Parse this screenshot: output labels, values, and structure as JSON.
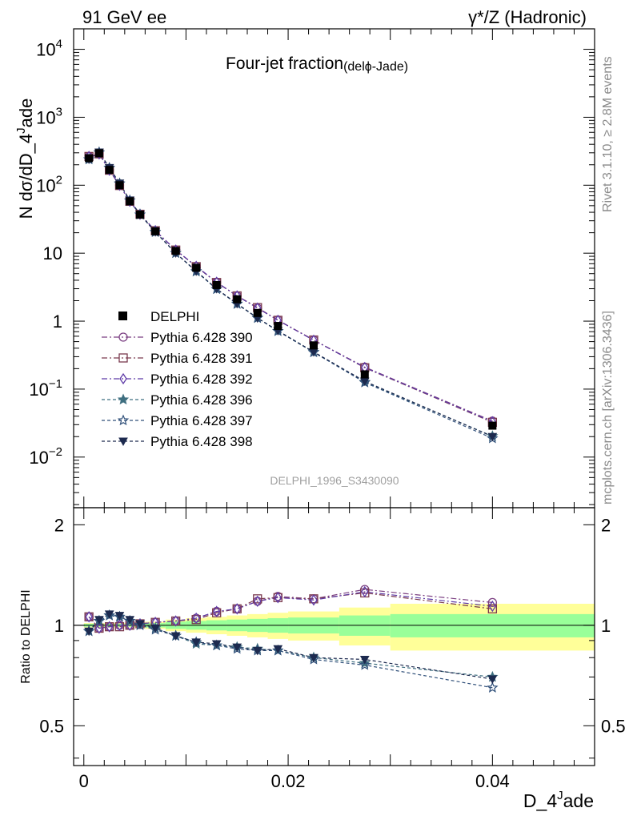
{
  "header": {
    "left": "91 GeV ee",
    "right": "γ*/Z (Hadronic)"
  },
  "side": {
    "rivet": "Rivet 3.1.10, ≥ 2.8M events",
    "mcplots": "mcplots.cern.ch [arXiv:1306.3436]"
  },
  "chart_data": {
    "type": "line",
    "title_main": "Four-jet fraction",
    "title_sub": "(del",
    "title_phi": "ϕ",
    "title_end": "-Jade)",
    "watermark": "DELPHI_1996_S3430090",
    "ylabel_main": "N dσ/dD_4",
    "ylabel_sup": "J",
    "ylabel_end": "ade",
    "ratio_ylabel": "Ratio to DELPHI",
    "xlabel_main": "D_4",
    "xlabel_sup": "J",
    "xlabel_end": "ade",
    "x_range": [
      -0.001,
      0.05
    ],
    "y_log_range": [
      0.0018,
      20000
    ],
    "ratio_range": [
      0.38,
      2.25
    ],
    "x_ticks": [
      0,
      0.02,
      0.04
    ],
    "x_tick_labels": [
      "0",
      "0.02",
      "0.04"
    ],
    "y_ticks": [
      {
        "v": 10000,
        "base": "10",
        "exp": "4"
      },
      {
        "v": 1000,
        "base": "10",
        "exp": "3"
      },
      {
        "v": 100,
        "base": "10",
        "exp": "2"
      },
      {
        "v": 10,
        "base": "10",
        "exp": ""
      },
      {
        "v": 1,
        "base": "1",
        "exp": ""
      },
      {
        "v": 0.1,
        "base": "10",
        "exp": "−1"
      },
      {
        "v": 0.01,
        "base": "10",
        "exp": "−2"
      }
    ],
    "ratio_ticks": [
      {
        "v": 2,
        "label": "2"
      },
      {
        "v": 1,
        "label": "1"
      },
      {
        "v": 0.5,
        "label": "0.5"
      }
    ],
    "x": [
      0.0005,
      0.0015,
      0.0025,
      0.0035,
      0.0045,
      0.0055,
      0.007,
      0.009,
      0.011,
      0.013,
      0.015,
      0.017,
      0.019,
      0.0225,
      0.0275,
      0.04
    ],
    "data": {
      "name": "DELPHI",
      "color": "#000000",
      "values": [
        250,
        295,
        168,
        100,
        58,
        37,
        21,
        10.8,
        6.1,
        3.4,
        2.1,
        1.32,
        0.85,
        0.44,
        0.165,
        0.029
      ],
      "band_edges": [
        0,
        0.001,
        0.002,
        0.003,
        0.004,
        0.005,
        0.006,
        0.008,
        0.01,
        0.012,
        0.014,
        0.016,
        0.018,
        0.02,
        0.025,
        0.03,
        0.05
      ],
      "band_inner": [
        0.01,
        0.01,
        0.01,
        0.01,
        0.01,
        0.012,
        0.015,
        0.025,
        0.03,
        0.035,
        0.04,
        0.045,
        0.05,
        0.055,
        0.07,
        0.08
      ],
      "band_outer": [
        0.015,
        0.015,
        0.015,
        0.015,
        0.015,
        0.02,
        0.025,
        0.04,
        0.05,
        0.06,
        0.07,
        0.08,
        0.09,
        0.1,
        0.13,
        0.16
      ]
    },
    "series": [
      {
        "name": "Pythia 6.428 390",
        "color": "#7b3f82",
        "marker": "circle",
        "dash": "7,3,2,3",
        "ratio": [
          1.06,
          0.98,
          0.99,
          1.0,
          1.0,
          1.01,
          1.02,
          1.03,
          1.05,
          1.1,
          1.12,
          1.18,
          1.22,
          1.2,
          1.28,
          1.17
        ]
      },
      {
        "name": "Pythia 6.428 391",
        "color": "#7a3a4e",
        "marker": "square",
        "dash": "7,3,2,3",
        "ratio": [
          1.06,
          0.98,
          0.99,
          0.99,
          1.0,
          1.01,
          1.02,
          1.03,
          1.04,
          1.09,
          1.12,
          1.2,
          1.21,
          1.2,
          1.25,
          1.12
        ]
      },
      {
        "name": "Pythia 6.428 392",
        "color": "#5e3aa6",
        "marker": "diamond",
        "dash": "7,3,2,3",
        "ratio": [
          1.06,
          0.98,
          0.99,
          1.0,
          1.0,
          1.01,
          1.02,
          1.03,
          1.05,
          1.1,
          1.12,
          1.18,
          1.21,
          1.19,
          1.26,
          1.14
        ]
      },
      {
        "name": "Pythia 6.428 396",
        "color": "#3f6f80",
        "marker": "star",
        "dash": "4,3",
        "ratio": [
          0.96,
          1.03,
          1.07,
          1.06,
          1.03,
          1.0,
          0.98,
          0.93,
          0.88,
          0.87,
          0.86,
          0.85,
          0.84,
          0.8,
          0.77,
          0.7
        ]
      },
      {
        "name": "Pythia 6.428 397",
        "color": "#30507a",
        "marker": "star-open",
        "dash": "4,3",
        "ratio": [
          0.96,
          1.03,
          1.07,
          1.06,
          1.03,
          1.0,
          0.97,
          0.93,
          0.89,
          0.87,
          0.85,
          0.84,
          0.84,
          0.79,
          0.76,
          0.65
        ]
      },
      {
        "name": "Pythia 6.428 398",
        "color": "#1d2a4f",
        "marker": "triangle-down",
        "dash": "4,3",
        "ratio": [
          0.96,
          1.04,
          1.08,
          1.07,
          1.04,
          1.01,
          0.98,
          0.93,
          0.89,
          0.88,
          0.86,
          0.84,
          0.85,
          0.8,
          0.79,
          0.69
        ]
      }
    ],
    "band_colors": {
      "inner": "#99ff99",
      "outer": "#ffff99"
    }
  }
}
